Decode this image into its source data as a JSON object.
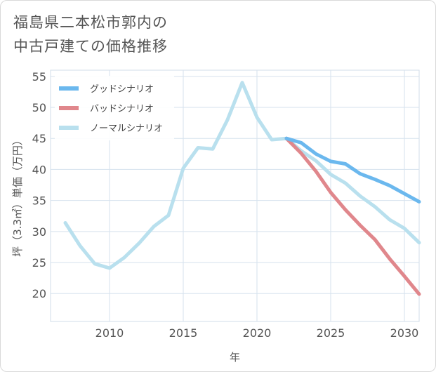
{
  "page_title": "福島県二本松市郭内の\n中古戸建ての価格推移",
  "chart_data": {
    "type": "line",
    "title": "福島県二本松市郭内の中古戸建ての価格推移",
    "xlabel": "年",
    "ylabel": "坪（3.3㎡）単価（万円）",
    "xlim": [
      2006,
      2031
    ],
    "ylim": [
      15.5,
      56
    ],
    "xticks": [
      2010,
      2015,
      2020,
      2025,
      2030
    ],
    "yticks": [
      20,
      25,
      30,
      35,
      40,
      45,
      50,
      55
    ],
    "grid": true,
    "legend_position": "top-left",
    "series": [
      {
        "name": "グッドシナリオ",
        "color": "#6bb8ee",
        "x": [
          2022,
          2023,
          2024,
          2025,
          2026,
          2027,
          2028,
          2029,
          2030,
          2031
        ],
        "y": [
          45.0,
          44.3,
          42.5,
          41.3,
          40.9,
          39.3,
          38.4,
          37.4,
          36.1,
          34.8
        ]
      },
      {
        "name": "バッドシナリオ",
        "color": "#e0878c",
        "x": [
          2022,
          2023,
          2024,
          2025,
          2026,
          2027,
          2028,
          2029,
          2030,
          2031
        ],
        "y": [
          45.0,
          42.6,
          39.7,
          36.3,
          33.5,
          31.0,
          28.7,
          25.6,
          22.8,
          19.9
        ]
      },
      {
        "name": "ノーマルシナリオ",
        "color": "#b9e0ee",
        "x": [
          2007,
          2008,
          2009,
          2010,
          2011,
          2012,
          2013,
          2014,
          2015,
          2016,
          2017,
          2018,
          2019,
          2020,
          2021,
          2022,
          2023,
          2024,
          2025,
          2026,
          2027,
          2028,
          2029,
          2030,
          2031
        ],
        "y": [
          31.4,
          27.7,
          24.8,
          24.1,
          25.8,
          28.1,
          30.8,
          32.6,
          40.2,
          43.5,
          43.3,
          48.0,
          54.0,
          48.4,
          44.8,
          45.0,
          43.0,
          41.4,
          39.2,
          37.8,
          35.7,
          34.0,
          31.9,
          30.5,
          28.2
        ]
      }
    ]
  }
}
